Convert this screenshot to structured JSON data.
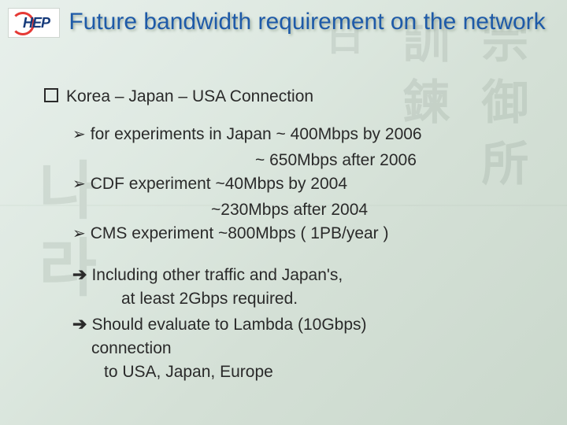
{
  "logo_text": "HEP",
  "title": "Future bandwidth requirement on the network",
  "section": "Korea – Japan – USA Connection",
  "bullets": {
    "b1_line1": "for experiments in Japan ~ 400Mbps by 2006",
    "b1_line2": "~ 650Mbps after 2006",
    "b2_line1": "CDF experiment  ~40Mbps by 2004",
    "b2_line2": "~230Mbps after 2004",
    "b3_line1": "CMS experiment  ~800Mbps ( 1PB/year )"
  },
  "conclusions": {
    "c1_line1": "Including other traffic and Japan's,",
    "c1_line2": "at least 2Gbps required.",
    "c2_line1": "Should evaluate to Lambda (10Gbps)",
    "c2_line2": "connection",
    "c2_line3": "to USA, Japan, Europe"
  },
  "colors": {
    "title_color": "#1e5aa8",
    "text_color": "#2a2a2a",
    "bg_grad_start": "#e8f0ec",
    "bg_grad_end": "#cad8cc",
    "logo_bg": "#ffffff",
    "logo_text": "#153a7a",
    "logo_swirl": "#e53935"
  },
  "typography": {
    "title_pt": 30,
    "body_pt": 21,
    "font_family": "Arial"
  },
  "layout": {
    "slide_w": 720,
    "slide_h": 540
  }
}
